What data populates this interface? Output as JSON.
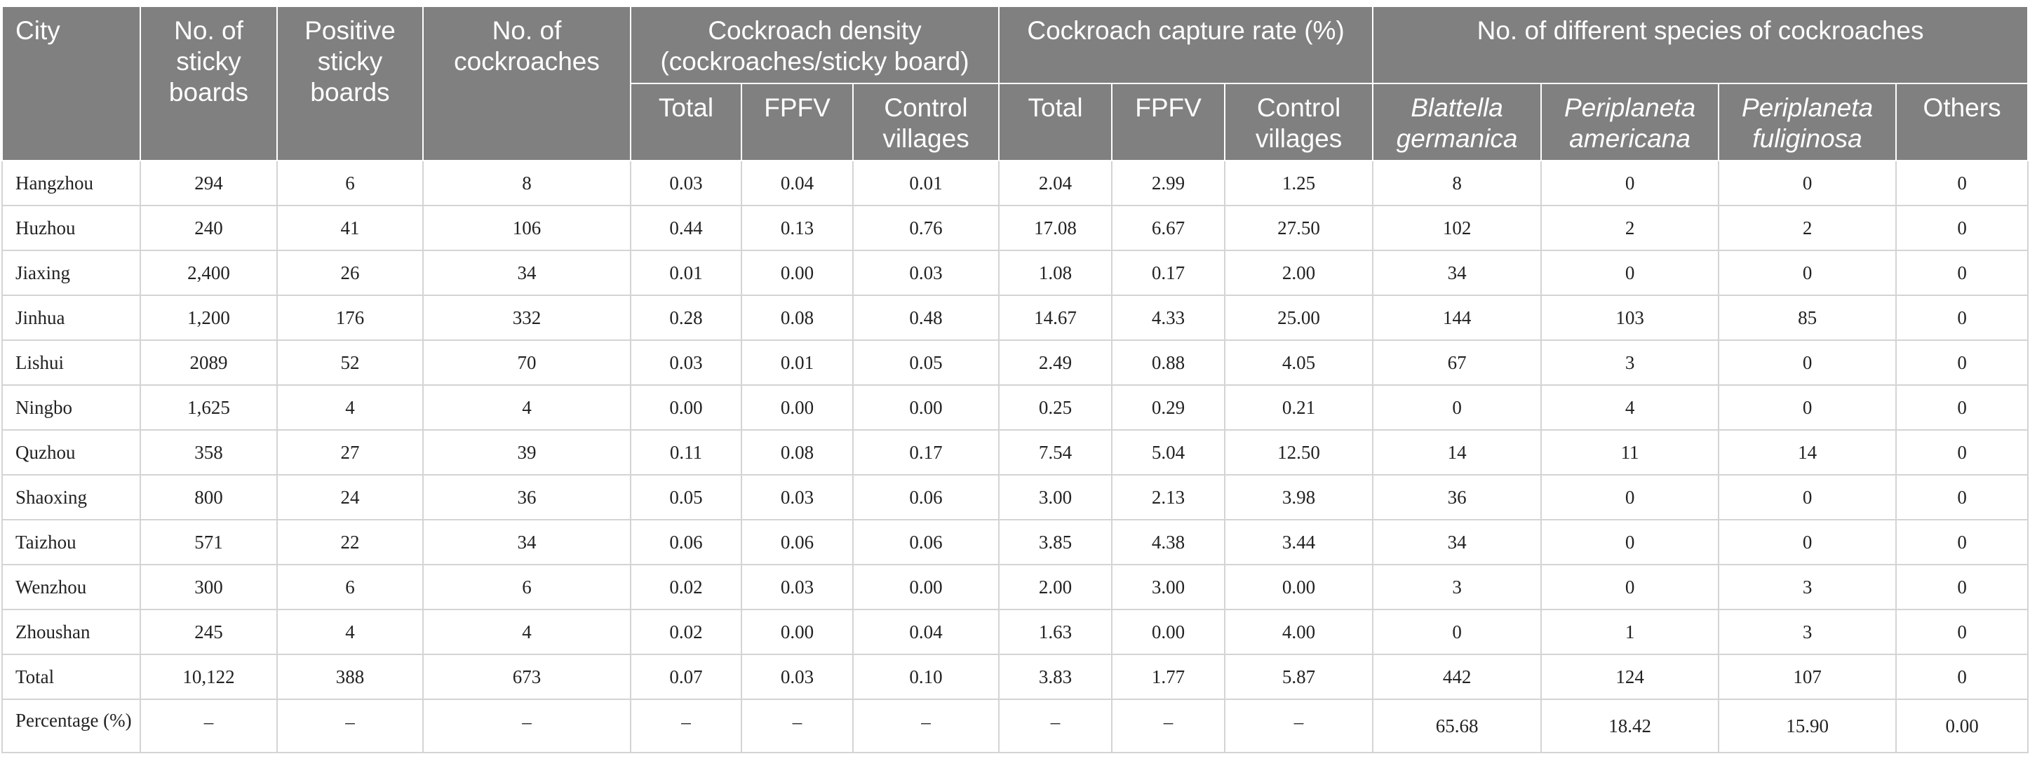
{
  "header": {
    "city": "City",
    "sticky_boards": "No. of sticky boards",
    "positive_boards": "Positive sticky boards",
    "cockroaches": "No. of cockroaches",
    "density_group": "Cockroach density (cockroaches/sticky board)",
    "capture_group": "Cockroach capture rate (%)",
    "species_group": "No. of different species of cockroaches",
    "total": "Total",
    "fpfv": "FPFV",
    "control": "Control villages",
    "blattella": "Blattella germanica",
    "americana": "Periplaneta americana",
    "fuliginosa": "Periplaneta fuliginosa",
    "others": "Others"
  },
  "rows": [
    {
      "city": "Hangzhou",
      "boards": "294",
      "positive": "6",
      "cockroaches": "8",
      "den_total": "0.03",
      "den_fpfv": "0.04",
      "den_control": "0.01",
      "cap_total": "2.04",
      "cap_fpfv": "2.99",
      "cap_control": "1.25",
      "blattella": "8",
      "americana": "0",
      "fuliginosa": "0",
      "others": "0"
    },
    {
      "city": "Huzhou",
      "boards": "240",
      "positive": "41",
      "cockroaches": "106",
      "den_total": "0.44",
      "den_fpfv": "0.13",
      "den_control": "0.76",
      "cap_total": "17.08",
      "cap_fpfv": "6.67",
      "cap_control": "27.50",
      "blattella": "102",
      "americana": "2",
      "fuliginosa": "2",
      "others": "0"
    },
    {
      "city": "Jiaxing",
      "boards": "2,400",
      "positive": "26",
      "cockroaches": "34",
      "den_total": "0.01",
      "den_fpfv": "0.00",
      "den_control": "0.03",
      "cap_total": "1.08",
      "cap_fpfv": "0.17",
      "cap_control": "2.00",
      "blattella": "34",
      "americana": "0",
      "fuliginosa": "0",
      "others": "0"
    },
    {
      "city": "Jinhua",
      "boards": "1,200",
      "positive": "176",
      "cockroaches": "332",
      "den_total": "0.28",
      "den_fpfv": "0.08",
      "den_control": "0.48",
      "cap_total": "14.67",
      "cap_fpfv": "4.33",
      "cap_control": "25.00",
      "blattella": "144",
      "americana": "103",
      "fuliginosa": "85",
      "others": "0"
    },
    {
      "city": "Lishui",
      "boards": "2089",
      "positive": "52",
      "cockroaches": "70",
      "den_total": "0.03",
      "den_fpfv": "0.01",
      "den_control": "0.05",
      "cap_total": "2.49",
      "cap_fpfv": "0.88",
      "cap_control": "4.05",
      "blattella": "67",
      "americana": "3",
      "fuliginosa": "0",
      "others": "0"
    },
    {
      "city": "Ningbo",
      "boards": "1,625",
      "positive": "4",
      "cockroaches": "4",
      "den_total": "0.00",
      "den_fpfv": "0.00",
      "den_control": "0.00",
      "cap_total": "0.25",
      "cap_fpfv": "0.29",
      "cap_control": "0.21",
      "blattella": "0",
      "americana": "4",
      "fuliginosa": "0",
      "others": "0"
    },
    {
      "city": "Quzhou",
      "boards": "358",
      "positive": "27",
      "cockroaches": "39",
      "den_total": "0.11",
      "den_fpfv": "0.08",
      "den_control": "0.17",
      "cap_total": "7.54",
      "cap_fpfv": "5.04",
      "cap_control": "12.50",
      "blattella": "14",
      "americana": "11",
      "fuliginosa": "14",
      "others": "0"
    },
    {
      "city": "Shaoxing",
      "boards": "800",
      "positive": "24",
      "cockroaches": "36",
      "den_total": "0.05",
      "den_fpfv": "0.03",
      "den_control": "0.06",
      "cap_total": "3.00",
      "cap_fpfv": "2.13",
      "cap_control": "3.98",
      "blattella": "36",
      "americana": "0",
      "fuliginosa": "0",
      "others": "0"
    },
    {
      "city": "Taizhou",
      "boards": "571",
      "positive": "22",
      "cockroaches": "34",
      "den_total": "0.06",
      "den_fpfv": "0.06",
      "den_control": "0.06",
      "cap_total": "3.85",
      "cap_fpfv": "4.38",
      "cap_control": "3.44",
      "blattella": "34",
      "americana": "0",
      "fuliginosa": "0",
      "others": "0"
    },
    {
      "city": "Wenzhou",
      "boards": "300",
      "positive": "6",
      "cockroaches": "6",
      "den_total": "0.02",
      "den_fpfv": "0.03",
      "den_control": "0.00",
      "cap_total": "2.00",
      "cap_fpfv": "3.00",
      "cap_control": "0.00",
      "blattella": "3",
      "americana": "0",
      "fuliginosa": "3",
      "others": "0"
    },
    {
      "city": "Zhoushan",
      "boards": "245",
      "positive": "4",
      "cockroaches": "4",
      "den_total": "0.02",
      "den_fpfv": "0.00",
      "den_control": "0.04",
      "cap_total": "1.63",
      "cap_fpfv": "0.00",
      "cap_control": "4.00",
      "blattella": "0",
      "americana": "1",
      "fuliginosa": "3",
      "others": "0"
    },
    {
      "city": "Total",
      "boards": "10,122",
      "positive": "388",
      "cockroaches": "673",
      "den_total": "0.07",
      "den_fpfv": "0.03",
      "den_control": "0.10",
      "cap_total": "3.83",
      "cap_fpfv": "1.77",
      "cap_control": "5.87",
      "blattella": "442",
      "americana": "124",
      "fuliginosa": "107",
      "others": "0"
    }
  ],
  "percentage_row": {
    "city": "Percentage (%)",
    "dash": "–",
    "blattella": "65.68",
    "americana": "18.42",
    "fuliginosa": "15.90",
    "others": "0.00"
  }
}
